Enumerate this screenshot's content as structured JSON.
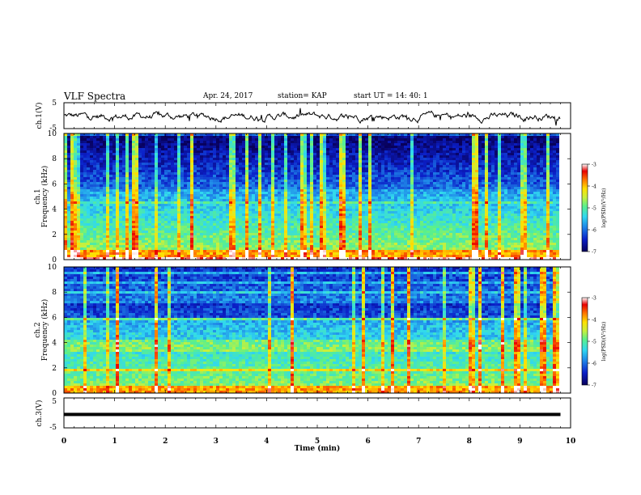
{
  "header": {
    "title": "VLF Spectra",
    "date": "Apr. 24, 2017",
    "station": "station= KAP",
    "start_ut": "start  UT =   14: 40: 1"
  },
  "chart_data": [
    {
      "type": "line",
      "panel": "ch1-waveform",
      "ylabel": "ch.1(V)",
      "ylim": [
        -5,
        5
      ],
      "yticks": [
        "5",
        "-5"
      ],
      "xlim": [
        0,
        10
      ],
      "color": "#000000"
    },
    {
      "type": "heatmap",
      "panel": "ch1-spectrogram",
      "ylabel_top": "ch.1",
      "ylabel": "Frequency  (kHz)",
      "ylim": [
        0,
        10
      ],
      "yticks": [
        "0",
        "2",
        "4",
        "6",
        "8",
        "10"
      ],
      "xlim": [
        0,
        10
      ],
      "data_end_min": 9.8,
      "colorbar": {
        "label": "log(PSD)(V²/Hz)",
        "range": [
          -7,
          -3
        ],
        "ticks": [
          "-3",
          "-4",
          "-5",
          "-6",
          "-7"
        ]
      }
    },
    {
      "type": "heatmap",
      "panel": "ch2-spectrogram",
      "ylabel_top": "ch.2",
      "ylabel": "Frequency  (kHz)",
      "ylim": [
        0,
        10
      ],
      "yticks": [
        "0",
        "2",
        "4",
        "6",
        "8",
        "10"
      ],
      "xlim": [
        0,
        10
      ],
      "data_end_min": 9.8,
      "colorbar": {
        "label": "log(PSD)(V²/Hz)",
        "range": [
          -7,
          -3
        ],
        "ticks": [
          "-3",
          "-4",
          "-5",
          "-6",
          "-7"
        ]
      }
    },
    {
      "type": "line",
      "panel": "ch3-waveform",
      "ylabel": "ch.3(V)",
      "ylim": [
        -5,
        5
      ],
      "yticks": [
        "5",
        "-5"
      ],
      "xlim": [
        0,
        10
      ],
      "constant_value": -0.5,
      "color": "#000000"
    }
  ],
  "xaxis": {
    "label": "Time  (min)",
    "ticks": [
      "0",
      "1",
      "2",
      "3",
      "4",
      "5",
      "6",
      "7",
      "8",
      "9",
      "10"
    ]
  },
  "colors": {
    "colormap": [
      "#08005a",
      "#0b1fc8",
      "#1f86e8",
      "#30d8f0",
      "#5af08c",
      "#c8f03c",
      "#ffe000",
      "#ff7800",
      "#e80000",
      "#ffffff"
    ]
  }
}
